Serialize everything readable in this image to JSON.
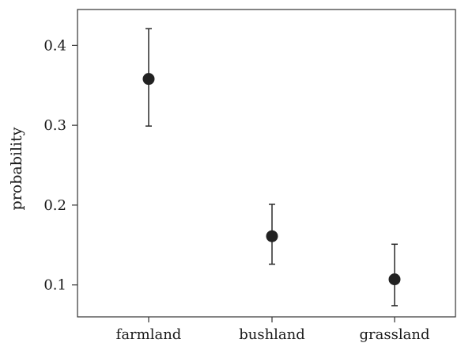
{
  "chart_data": {
    "type": "scatter",
    "categories": [
      "farmland",
      "bushland",
      "grassland"
    ],
    "values": [
      0.358,
      0.161,
      0.107
    ],
    "lower": [
      0.299,
      0.126,
      0.074
    ],
    "upper": [
      0.421,
      0.201,
      0.151
    ],
    "title": "",
    "xlabel": "",
    "ylabel": "probability",
    "yticks": [
      "0.1",
      "0.2",
      "0.3",
      "0.4"
    ],
    "ylim": [
      0.06,
      0.445
    ],
    "grid": false,
    "colors": {
      "point": "#222222",
      "errorbar": "#2a2a2a",
      "axis": "#333333"
    }
  }
}
